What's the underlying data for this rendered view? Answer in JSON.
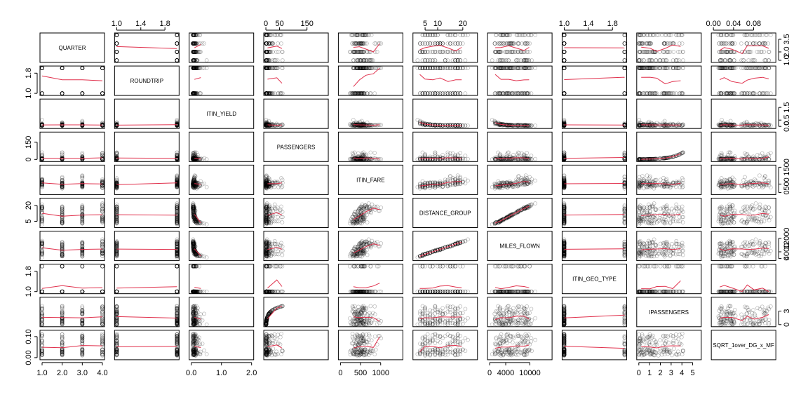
{
  "chart_data": {
    "type": "scatter",
    "variables": [
      {
        "name": "QUARTER",
        "range": [
          1,
          4
        ],
        "type": "discrete",
        "levels": [
          1,
          2,
          3,
          4
        ]
      },
      {
        "name": "ROUNDTRIP",
        "range": [
          1,
          2
        ],
        "type": "binary",
        "levels": [
          1,
          2
        ]
      },
      {
        "name": "ITIN_YIELD",
        "range": [
          0,
          2
        ],
        "type": "skewed"
      },
      {
        "name": "PASSENGERS",
        "range": [
          0,
          220
        ],
        "type": "skewed"
      },
      {
        "name": "ITIN_FARE",
        "range": [
          0,
          1500
        ],
        "type": "skewed"
      },
      {
        "name": "DISTANCE_GROUP",
        "range": [
          1,
          25
        ],
        "type": "discrete"
      },
      {
        "name": "MILES_FLOWN",
        "range": [
          0,
          15000
        ],
        "type": "skewed"
      },
      {
        "name": "ITIN_GEO_TYPE",
        "range": [
          1,
          2
        ],
        "type": "binary",
        "levels": [
          1,
          2
        ]
      },
      {
        "name": "lPASSENGERS",
        "range": [
          0,
          5.6
        ],
        "type": "skewed"
      },
      {
        "name": "SQRT_1over_DG_x_MF",
        "range": [
          0,
          0.12
        ],
        "type": "bimodal"
      }
    ],
    "axis_ticks": [
      {
        "var": 0,
        "side": "bottom",
        "labels": [
          "1.0",
          "2.0",
          "3.0",
          "4.0"
        ],
        "values": [
          1,
          2,
          3,
          4
        ]
      },
      {
        "var": 1,
        "side": "top",
        "labels": [
          "1.0",
          "1.4",
          "1.8"
        ],
        "values": [
          1.0,
          1.4,
          1.8
        ]
      },
      {
        "var": 2,
        "side": "bottom",
        "labels": [
          "0.0",
          "1.0",
          "2.0"
        ],
        "values": [
          0,
          1,
          2
        ]
      },
      {
        "var": 3,
        "side": "top",
        "labels": [
          "0",
          "50",
          "150"
        ],
        "values": [
          0,
          50,
          150
        ]
      },
      {
        "var": 4,
        "side": "bottom",
        "labels": [
          "0",
          "500",
          "1000"
        ],
        "values": [
          0,
          500,
          1000
        ]
      },
      {
        "var": 5,
        "side": "top",
        "labels": [
          "5",
          "10",
          "20"
        ],
        "values": [
          5,
          10,
          20
        ]
      },
      {
        "var": 6,
        "side": "bottom",
        "labels": [
          "0",
          "4000",
          "10000"
        ],
        "values": [
          0,
          4000,
          10000
        ]
      },
      {
        "var": 7,
        "side": "top",
        "labels": [
          "1.0",
          "1.4",
          "1.8"
        ],
        "values": [
          1.0,
          1.4,
          1.8
        ]
      },
      {
        "var": 8,
        "side": "bottom",
        "labels": [
          "0",
          "1",
          "2",
          "3",
          "4",
          "5"
        ],
        "values": [
          0,
          1,
          2,
          3,
          4,
          5
        ]
      },
      {
        "var": 9,
        "side": "top",
        "labels": [
          "0.00",
          "0.04",
          "0.08"
        ],
        "values": [
          0,
          0.04,
          0.08
        ]
      },
      {
        "var": 0,
        "side": "right",
        "labels": [
          "1.0",
          "2.0",
          "3.5"
        ],
        "values": [
          1.0,
          2.0,
          3.5
        ]
      },
      {
        "var": 1,
        "side": "left",
        "labels": [
          "1.0",
          "1.8"
        ],
        "values": [
          1.0,
          1.8
        ]
      },
      {
        "var": 2,
        "side": "right",
        "labels": [
          "0.0",
          "0.5",
          "1.5"
        ],
        "values": [
          0,
          0.5,
          1.5
        ]
      },
      {
        "var": 3,
        "side": "left",
        "labels": [
          "0",
          "150"
        ],
        "values": [
          0,
          150
        ]
      },
      {
        "var": 4,
        "side": "right",
        "labels": [
          "0",
          "500",
          "1500"
        ],
        "values": [
          0,
          500,
          1500
        ]
      },
      {
        "var": 5,
        "side": "left",
        "labels": [
          "5",
          "20"
        ],
        "values": [
          5,
          20
        ]
      },
      {
        "var": 6,
        "side": "right",
        "labels": [
          "0",
          "4000",
          "12000"
        ],
        "values": [
          0,
          4000,
          12000
        ]
      },
      {
        "var": 7,
        "side": "left",
        "labels": [
          "1.0",
          "1.8"
        ],
        "values": [
          1.0,
          1.8
        ]
      },
      {
        "var": 8,
        "side": "right",
        "labels": [
          "0",
          "3"
        ],
        "values": [
          0,
          3
        ]
      },
      {
        "var": 9,
        "side": "left",
        "labels": [
          "0.00",
          "0.10"
        ],
        "values": [
          0,
          0.1
        ]
      }
    ],
    "smoother_color": "#e0304c",
    "point_color": "#000000"
  }
}
